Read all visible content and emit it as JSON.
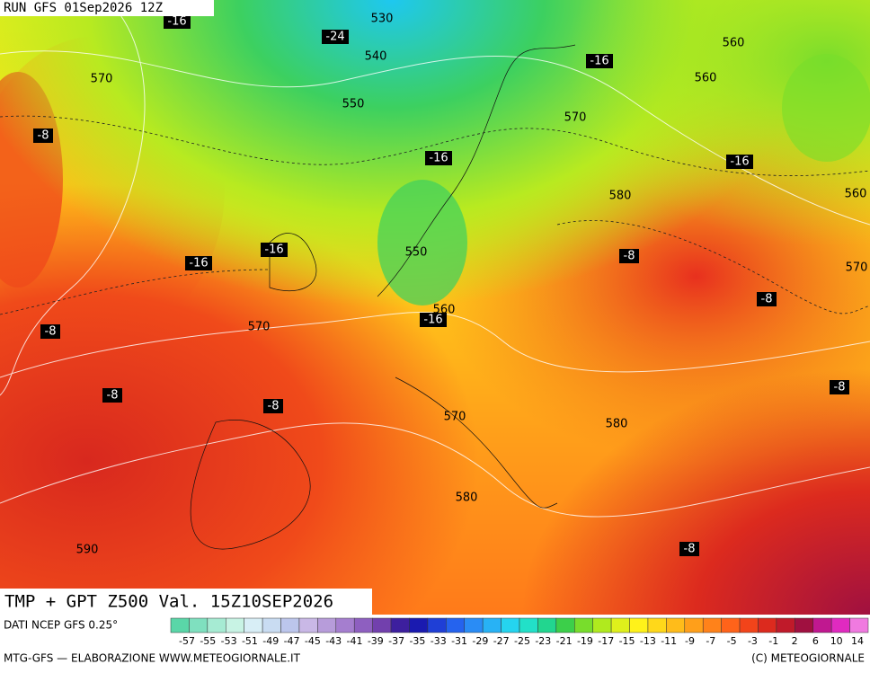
{
  "header": {
    "run": "RUN GFS 01Sep2026 12Z"
  },
  "map": {
    "labels": [
      530,
      -16,
      -24,
      540,
      560,
      -16,
      570,
      560,
      550,
      570,
      -8,
      -16,
      -16,
      580,
      560,
      -16,
      -16,
      550,
      -8,
      570,
      -8,
      560,
      -16,
      570,
      -8,
      -8,
      -8,
      -8,
      570,
      580,
      580,
      590,
      -8
    ]
  },
  "footer": {
    "title": "TMP + GPT Z500 Val. 15Z10SEP2026",
    "source": "DATI NCEP GFS 0.25°",
    "scale": {
      "values": [
        -57,
        -55,
        -53,
        -51,
        -49,
        -47,
        -45,
        -43,
        -41,
        -39,
        -37,
        -35,
        -33,
        -31,
        -29,
        -27,
        -25,
        -23,
        -21,
        -19,
        -17,
        -15,
        -13,
        -11,
        -9,
        -7,
        -5,
        -3,
        -1,
        2,
        6,
        10,
        14
      ],
      "colors": [
        "#5ad6a8",
        "#7fe0bf",
        "#a6ebd3",
        "#c8f3e4",
        "#d8eef6",
        "#c9dcf2",
        "#bcc6ec",
        "#c9b8e6",
        "#b79cda",
        "#a57ecf",
        "#8e5fc0",
        "#7240ad",
        "#3d1f9e",
        "#1a1ab0",
        "#1f3fd6",
        "#2563ee",
        "#2a8cf5",
        "#28b2f5",
        "#25d4ef",
        "#22e0c8",
        "#22d68f",
        "#3ccf4a",
        "#78dd2c",
        "#b0ea1e",
        "#dff01c",
        "#fff21a",
        "#ffd81a",
        "#ffbc1a",
        "#ff9f1a",
        "#ff821a",
        "#ff631a",
        "#f2441a",
        "#dc2a1e",
        "#c01a2a",
        "#a01040",
        "#c01890",
        "#e02ac0",
        "#f07ae0"
      ]
    },
    "credit": "MTG-GFS — ELABORAZIONE WWW.METEOGIORNALE.IT",
    "copyright": "(C) METEOGIORNALE"
  }
}
